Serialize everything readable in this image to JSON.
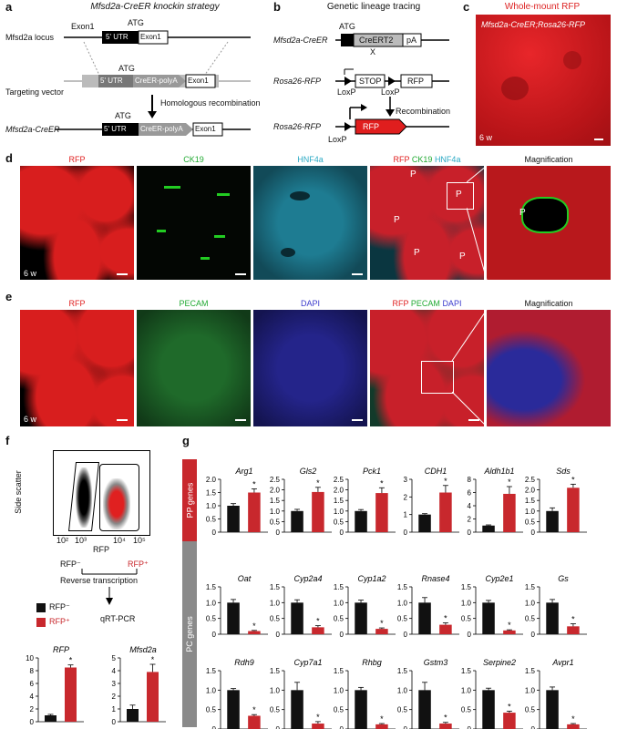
{
  "panels": {
    "a": "a",
    "b": "b",
    "c": "c",
    "d": "d",
    "e": "e",
    "f": "f",
    "g": "g"
  },
  "a": {
    "title": "Mfsd2a-CreER knockin strategy",
    "locus": "Mfsd2a locus",
    "exon1": "Exon1",
    "atg": "ATG",
    "utr": "5' UTR",
    "creer": "CreER-polyA",
    "targeting": "Targeting vector",
    "homolog": "Homologous recombination",
    "result": "Mfsd2a-CreER"
  },
  "b": {
    "title": "Genetic lineage tracing",
    "creer_line": "Mfsd2a-CreER",
    "atg": "ATG",
    "creert2": "CreERT2",
    "pa": "pA",
    "x": "X",
    "rosa1": "Rosa26-RFP",
    "stop": "STOP",
    "rfp": "RFP",
    "loxp": "LoxP",
    "recomb": "Recombination",
    "rosa2": "Rosa26-RFP"
  },
  "c": {
    "title": "Whole-mount RFP",
    "subtitle": "Mfsd2a-CreER;Rosa26-RFP",
    "age": "6 w"
  },
  "d": {
    "rfp": "RFP",
    "ck19": "CK19",
    "hnf4a": "HNF4a",
    "merge_rfp": "RFP",
    "merge_ck19": "CK19",
    "merge_hnf4a": "HNF4a",
    "mag": "Magnification",
    "age": "6 w",
    "p": "P"
  },
  "e": {
    "rfp": "RFP",
    "pecam": "PECAM",
    "dapi": "DAPI",
    "merge_rfp": "RFP",
    "merge_pecam": "PECAM",
    "merge_dapi": "DAPI",
    "mag": "Magnification",
    "age": "6 w"
  },
  "f": {
    "yaxis": "Side scatter",
    "xaxis": "RFP",
    "xticks": [
      "10²",
      "10³",
      "10⁴",
      "10⁵"
    ],
    "neg": "RFP⁻",
    "pos": "RFP⁺",
    "rt": "Reverse transcription",
    "qpcr": "qRT-PCR",
    "legend_neg": "RFP⁻",
    "legend_pos": "RFP⁺"
  },
  "g": {
    "pp_label": "PP genes",
    "pc_label": "PC genes"
  },
  "chart_data": [
    {
      "type": "bar",
      "gene": "RFP",
      "ylim": [
        0,
        10
      ],
      "yticks": [
        "0",
        "2",
        "4",
        "6",
        "8",
        "10"
      ],
      "series": [
        {
          "name": "RFP⁻",
          "values": [
            1
          ]
        },
        {
          "name": "RFP⁺",
          "values": [
            8.5
          ]
        }
      ],
      "errors": [
        0.15,
        0.4
      ],
      "sig": "*"
    },
    {
      "type": "bar",
      "gene": "Mfsd2a",
      "ylim": [
        0,
        5
      ],
      "yticks": [
        "0",
        "1",
        "2",
        "3",
        "4",
        "5"
      ],
      "series": [
        {
          "name": "RFP⁻",
          "values": [
            1
          ]
        },
        {
          "name": "RFP⁺",
          "values": [
            3.9
          ]
        }
      ],
      "errors": [
        0.3,
        0.6
      ],
      "sig": "*"
    },
    {
      "type": "bar",
      "gene": "Arg1",
      "ylim": [
        0,
        2
      ],
      "yticks": [
        "0",
        "0.5",
        "1.0",
        "1.5",
        "2.0"
      ],
      "series": [
        {
          "name": "RFP⁻",
          "values": [
            1
          ]
        },
        {
          "name": "RFP⁺",
          "values": [
            1.5
          ]
        }
      ],
      "errors": [
        0.08,
        0.14
      ],
      "sig": "*"
    },
    {
      "type": "bar",
      "gene": "Gls2",
      "ylim": [
        0,
        2.5
      ],
      "yticks": [
        "0",
        "0.5",
        "1.0",
        "1.5",
        "2.0",
        "2.5"
      ],
      "series": [
        {
          "name": "RFP⁻",
          "values": [
            1
          ]
        },
        {
          "name": "RFP⁺",
          "values": [
            1.9
          ]
        }
      ],
      "errors": [
        0.08,
        0.22
      ],
      "sig": "*"
    },
    {
      "type": "bar",
      "gene": "Pck1",
      "ylim": [
        0,
        2.5
      ],
      "yticks": [
        "0",
        "0.5",
        "1.0",
        "1.5",
        "2.0",
        "2.5"
      ],
      "series": [
        {
          "name": "RFP⁻",
          "values": [
            1
          ]
        },
        {
          "name": "RFP⁺",
          "values": [
            1.85
          ]
        }
      ],
      "errors": [
        0.07,
        0.25
      ],
      "sig": "*"
    },
    {
      "type": "bar",
      "gene": "CDH1",
      "ylim": [
        0,
        3
      ],
      "yticks": [
        "0",
        "1",
        "2",
        "3"
      ],
      "series": [
        {
          "name": "RFP⁻",
          "values": [
            1
          ]
        },
        {
          "name": "RFP⁺",
          "values": [
            2.25
          ]
        }
      ],
      "errors": [
        0.05,
        0.4
      ],
      "sig": "*"
    },
    {
      "type": "bar",
      "gene": "Aldh1b1",
      "ylim": [
        0,
        8
      ],
      "yticks": [
        "0",
        "2",
        "4",
        "6",
        "8"
      ],
      "series": [
        {
          "name": "RFP⁻",
          "values": [
            1
          ]
        },
        {
          "name": "RFP⁺",
          "values": [
            5.8
          ]
        }
      ],
      "errors": [
        0.1,
        1.1
      ],
      "sig": "*"
    },
    {
      "type": "bar",
      "gene": "Sds",
      "ylim": [
        0,
        2.5
      ],
      "yticks": [
        "0",
        "0.5",
        "1.0",
        "1.5",
        "2.0",
        "2.5"
      ],
      "series": [
        {
          "name": "RFP⁻",
          "values": [
            1
          ]
        },
        {
          "name": "RFP⁺",
          "values": [
            2.1
          ]
        }
      ],
      "errors": [
        0.15,
        0.17
      ],
      "sig": "*"
    },
    {
      "type": "bar",
      "gene": "Oat",
      "ylim": [
        0,
        1.5
      ],
      "yticks": [
        "0",
        "0.5",
        "1.0",
        "1.5"
      ],
      "series": [
        {
          "name": "RFP⁻",
          "values": [
            1
          ]
        },
        {
          "name": "RFP⁺",
          "values": [
            0.1
          ]
        }
      ],
      "errors": [
        0.1,
        0.02
      ],
      "sig": "*"
    },
    {
      "type": "bar",
      "gene": "Cyp2a4",
      "ylim": [
        0,
        1.5
      ],
      "yticks": [
        "0",
        "0.5",
        "1.0",
        "1.5"
      ],
      "series": [
        {
          "name": "RFP⁻",
          "values": [
            1
          ]
        },
        {
          "name": "RFP⁺",
          "values": [
            0.22
          ]
        }
      ],
      "errors": [
        0.09,
        0.05
      ],
      "sig": "*"
    },
    {
      "type": "bar",
      "gene": "Cyp1a2",
      "ylim": [
        0,
        1.5
      ],
      "yticks": [
        "0",
        "0.5",
        "1.0",
        "1.5"
      ],
      "series": [
        {
          "name": "RFP⁻",
          "values": [
            1
          ]
        },
        {
          "name": "RFP⁺",
          "values": [
            0.17
          ]
        }
      ],
      "errors": [
        0.08,
        0.03
      ],
      "sig": "*"
    },
    {
      "type": "bar",
      "gene": "Rnase4",
      "ylim": [
        0,
        1.5
      ],
      "yticks": [
        "0",
        "0.5",
        "1.0",
        "1.5"
      ],
      "series": [
        {
          "name": "RFP⁻",
          "values": [
            1
          ]
        },
        {
          "name": "RFP⁺",
          "values": [
            0.3
          ]
        }
      ],
      "errors": [
        0.16,
        0.06
      ],
      "sig": "*"
    },
    {
      "type": "bar",
      "gene": "Cyp2e1",
      "ylim": [
        0,
        1.5
      ],
      "yticks": [
        "0",
        "0.5",
        "1.0",
        "1.5"
      ],
      "series": [
        {
          "name": "RFP⁻",
          "values": [
            1
          ]
        },
        {
          "name": "RFP⁺",
          "values": [
            0.12
          ]
        }
      ],
      "errors": [
        0.07,
        0.02
      ],
      "sig": "*"
    },
    {
      "type": "bar",
      "gene": "Gs",
      "ylim": [
        0,
        1.5
      ],
      "yticks": [
        "0",
        "0.5",
        "1.0",
        "1.5"
      ],
      "series": [
        {
          "name": "RFP⁻",
          "values": [
            1
          ]
        },
        {
          "name": "RFP⁺",
          "values": [
            0.25
          ]
        }
      ],
      "errors": [
        0.1,
        0.08
      ],
      "sig": "*"
    },
    {
      "type": "bar",
      "gene": "Rdh9",
      "ylim": [
        0,
        1.5
      ],
      "yticks": [
        "0",
        "0.5",
        "1.0",
        "1.5"
      ],
      "series": [
        {
          "name": "RFP⁻",
          "values": [
            1
          ]
        },
        {
          "name": "RFP⁺",
          "values": [
            0.34
          ]
        }
      ],
      "errors": [
        0.04,
        0.03
      ],
      "sig": "*"
    },
    {
      "type": "bar",
      "gene": "Cyp7a1",
      "ylim": [
        0,
        1.5
      ],
      "yticks": [
        "0",
        "0.5",
        "1.0",
        "1.5"
      ],
      "series": [
        {
          "name": "RFP⁻",
          "values": [
            1
          ]
        },
        {
          "name": "RFP⁺",
          "values": [
            0.14
          ]
        }
      ],
      "errors": [
        0.2,
        0.05
      ],
      "sig": "*"
    },
    {
      "type": "bar",
      "gene": "Rhbg",
      "ylim": [
        0,
        1.5
      ],
      "yticks": [
        "0",
        "0.5",
        "1.0",
        "1.5"
      ],
      "series": [
        {
          "name": "RFP⁻",
          "values": [
            1
          ]
        },
        {
          "name": "RFP⁺",
          "values": [
            0.12
          ]
        }
      ],
      "errors": [
        0.07,
        0.02
      ],
      "sig": "*"
    },
    {
      "type": "bar",
      "gene": "Gstm3",
      "ylim": [
        0,
        1.5
      ],
      "yticks": [
        "0",
        "0.5",
        "1.0",
        "1.5"
      ],
      "series": [
        {
          "name": "RFP⁻",
          "values": [
            1
          ]
        },
        {
          "name": "RFP⁺",
          "values": [
            0.14
          ]
        }
      ],
      "errors": [
        0.2,
        0.03
      ],
      "sig": "*"
    },
    {
      "type": "bar",
      "gene": "Serpine2",
      "ylim": [
        0,
        1.5
      ],
      "yticks": [
        "0",
        "0.5",
        "1.0",
        "1.5"
      ],
      "series": [
        {
          "name": "RFP⁻",
          "values": [
            1
          ]
        },
        {
          "name": "RFP⁺",
          "values": [
            0.42
          ]
        }
      ],
      "errors": [
        0.05,
        0.04
      ],
      "sig": "*"
    },
    {
      "type": "bar",
      "gene": "Avpr1",
      "ylim": [
        0,
        1.5
      ],
      "yticks": [
        "0",
        "0.5",
        "1.0",
        "1.5"
      ],
      "series": [
        {
          "name": "RFP⁻",
          "values": [
            1
          ]
        },
        {
          "name": "RFP⁺",
          "values": [
            0.12
          ]
        }
      ],
      "errors": [
        0.08,
        0.02
      ],
      "sig": "*"
    }
  ],
  "colors": {
    "neg": "#111111",
    "pos": "#c8282d",
    "sidebar_pp": "#c8282d",
    "sidebar_pc": "#8a8a8a",
    "rfp": "#e02020",
    "ck19": "#22cc33",
    "hnf4a": "#2aa9c4",
    "pecam": "#22aa33",
    "dapi": "#3a3acc"
  }
}
